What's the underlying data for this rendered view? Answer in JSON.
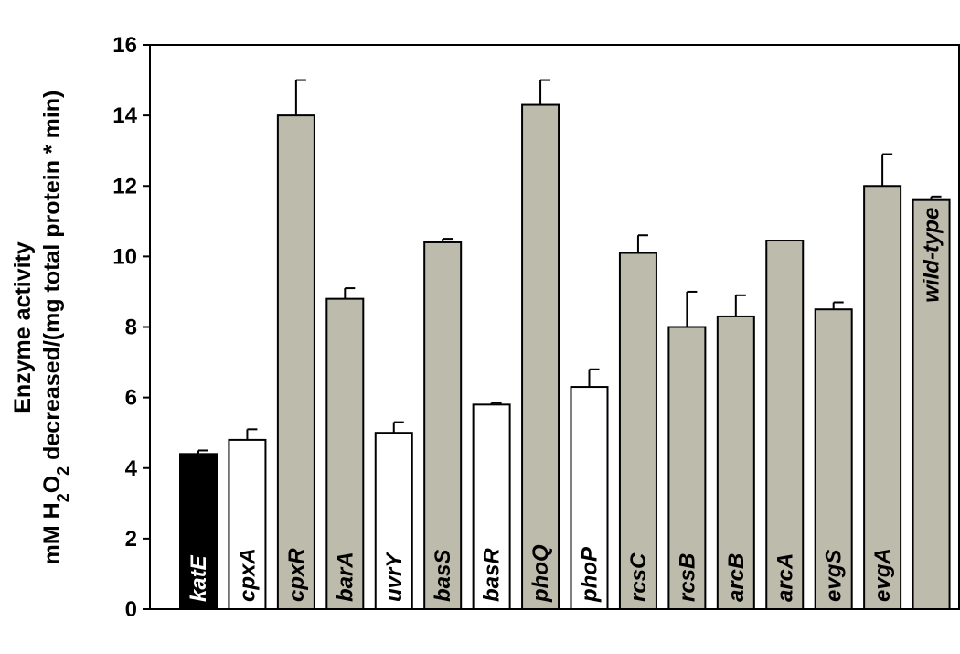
{
  "chart_data": {
    "type": "bar",
    "ylabel_line1": "Enzyme activity",
    "ylabel_line2": {
      "prefix": "mM H",
      "sub1": "2",
      "mid": "O",
      "sub2": "2",
      "suffix": " decreased/(mg total protein * min)"
    },
    "ylim": [
      0,
      16
    ],
    "yticks": [
      "0",
      "2",
      "4",
      "6",
      "8",
      "10",
      "12",
      "14",
      "16"
    ],
    "grid": false,
    "categories": [
      "katE",
      "cpxA",
      "cpxR",
      "barA",
      "uvrY",
      "basS",
      "basR",
      "phoQ",
      "phoP",
      "rcsC",
      "rcsB",
      "arcB",
      "arcA",
      "evgS",
      "evgA",
      "wild-type"
    ],
    "italic": [
      true,
      true,
      true,
      true,
      true,
      true,
      true,
      true,
      true,
      true,
      true,
      true,
      true,
      true,
      true,
      false
    ],
    "values": [
      4.4,
      4.8,
      14.0,
      8.8,
      5.0,
      10.4,
      5.8,
      14.3,
      6.3,
      10.1,
      8.0,
      8.3,
      10.45,
      8.5,
      12.0,
      11.6
    ],
    "errors": [
      0.1,
      0.3,
      1.0,
      0.3,
      0.3,
      0.1,
      0.05,
      0.7,
      0.5,
      0.5,
      1.0,
      0.6,
      0,
      0.2,
      0.9,
      0.1
    ],
    "fill": [
      "#000000",
      "#ffffff",
      "#bdbbab",
      "#bdbbab",
      "#ffffff",
      "#bdbbab",
      "#ffffff",
      "#bdbbab",
      "#ffffff",
      "#bdbbab",
      "#bdbbab",
      "#bdbbab",
      "#bdbbab",
      "#bdbbab",
      "#bdbbab",
      "#bdbbab"
    ],
    "label_color": [
      "#ffffff",
      "#000000",
      "#000000",
      "#000000",
      "#000000",
      "#000000",
      "#000000",
      "#000000",
      "#000000",
      "#000000",
      "#000000",
      "#000000",
      "#000000",
      "#000000",
      "#000000",
      "#000000"
    ]
  }
}
